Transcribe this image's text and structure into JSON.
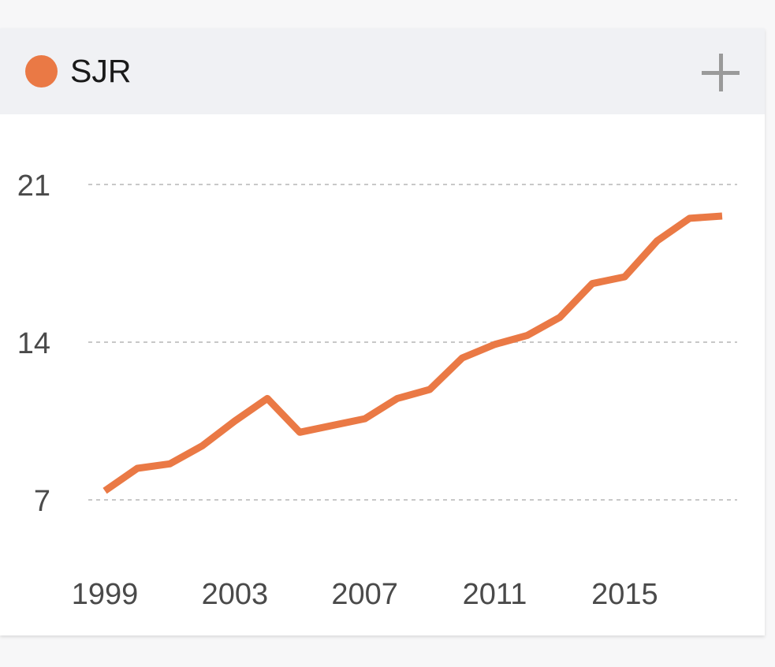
{
  "legend": {
    "label": "SJR",
    "color": "#ea7945"
  },
  "header": {
    "add_icon": "plus-icon"
  },
  "chart_data": {
    "type": "line",
    "x": [
      1999,
      2000,
      2001,
      2002,
      2003,
      2004,
      2005,
      2006,
      2007,
      2008,
      2009,
      2010,
      2011,
      2012,
      2013,
      2014,
      2015,
      2016,
      2017,
      2018
    ],
    "series": [
      {
        "name": "SJR",
        "color": "#ea7945",
        "values": [
          7.4,
          8.4,
          8.6,
          9.4,
          10.5,
          11.5,
          10.0,
          10.3,
          10.6,
          11.5,
          11.9,
          13.3,
          13.9,
          14.3,
          15.1,
          16.6,
          16.9,
          18.5,
          19.5,
          19.6
        ]
      }
    ],
    "y_ticks": [
      7,
      14,
      21
    ],
    "x_ticks": [
      1999,
      2003,
      2007,
      2011,
      2015
    ],
    "ylim": [
      7,
      21
    ],
    "grid": "horizontal dashed",
    "legend_position": "top-left"
  }
}
